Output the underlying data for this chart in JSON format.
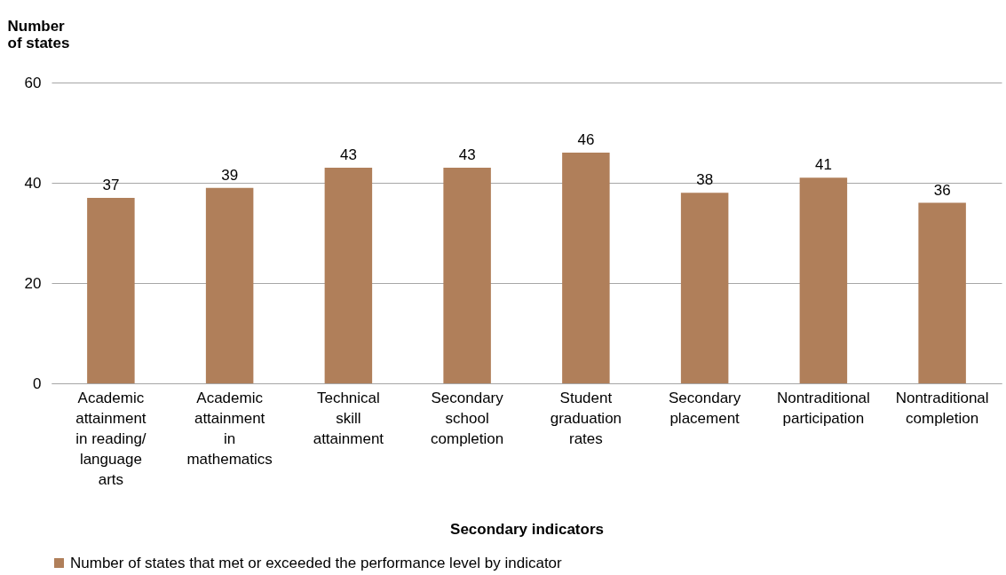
{
  "chart_data": {
    "type": "bar",
    "ylabel": "Number of states",
    "xlabel": "Secondary indicators",
    "categories": [
      "Academic attainment in reading/ language arts",
      "Academic attainment in mathematics",
      "Technical skill attainment",
      "Secondary school completion",
      "Student graduation rates",
      "Secondary placement",
      "Nontraditional participation",
      "Nontraditional completion"
    ],
    "series": [
      {
        "name": "Number of states that met or exceeded the performance level by indicator",
        "color": "#b07f5a",
        "values": [
          37,
          39,
          43,
          43,
          46,
          38,
          41,
          36
        ]
      }
    ],
    "ylim": [
      0,
      60
    ],
    "yticks": [
      0,
      20,
      40,
      60
    ],
    "grid": "y",
    "data_labels": true,
    "legend": "bottom"
  }
}
